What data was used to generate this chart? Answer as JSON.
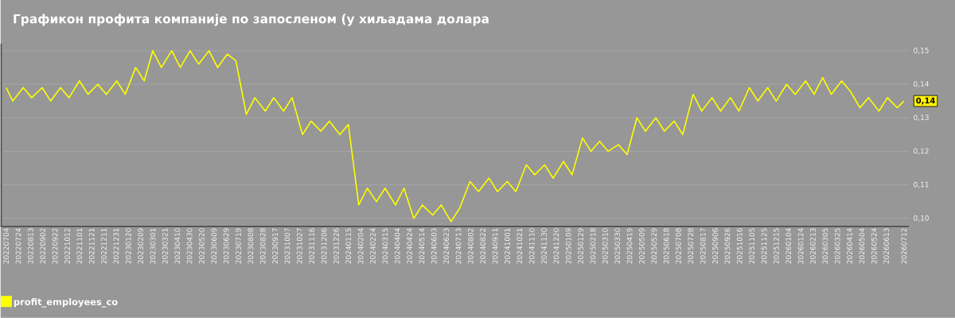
{
  "chart_data": {
    "type": "line",
    "title": "Графикон профита компаније по запосленом (у хиљадама долара",
    "x": [
      "2022-07-04",
      "2022-07-15",
      "2022-08-01",
      "2022-08-15",
      "2022-09-01",
      "2022-09-15",
      "2022-10-01",
      "2022-10-15",
      "2022-11-01",
      "2022-11-15",
      "2022-12-01",
      "2022-12-15",
      "2023-01-01",
      "2023-01-15",
      "2023-02-01",
      "2023-02-15",
      "2023-03-01",
      "2023-03-15",
      "2023-04-01",
      "2023-04-15",
      "2023-05-01",
      "2023-05-15",
      "2023-06-01",
      "2023-06-15",
      "2023-07-01",
      "2023-07-15",
      "2023-08-01",
      "2023-08-15",
      "2023-09-01",
      "2023-09-15",
      "2023-10-01",
      "2023-10-15",
      "2023-11-01",
      "2023-11-15",
      "2023-12-01",
      "2023-12-15",
      "2024-01-01",
      "2024-01-15",
      "2024-02-01",
      "2024-02-15",
      "2024-03-01",
      "2024-03-15",
      "2024-04-01",
      "2024-04-15",
      "2024-05-01",
      "2024-05-15",
      "2024-06-01",
      "2024-06-15",
      "2024-07-01",
      "2024-07-15",
      "2024-08-01",
      "2024-08-15",
      "2024-09-01",
      "2024-09-15",
      "2024-10-01",
      "2024-10-15",
      "2024-11-01",
      "2024-11-15",
      "2024-12-01",
      "2024-12-15",
      "2025-01-01",
      "2025-01-15",
      "2025-02-01",
      "2025-02-15",
      "2025-03-01",
      "2025-03-15",
      "2025-04-01",
      "2025-04-15",
      "2025-05-01",
      "2025-05-15",
      "2025-06-01",
      "2025-06-15",
      "2025-07-01",
      "2025-07-15",
      "2025-08-01",
      "2025-08-15",
      "2025-09-01",
      "2025-09-15",
      "2025-10-01",
      "2025-10-15",
      "2025-11-01",
      "2025-11-15",
      "2025-12-01",
      "2025-12-15",
      "2026-01-01",
      "2026-01-15",
      "2026-02-01",
      "2026-02-15",
      "2026-03-01",
      "2026-03-15",
      "2026-04-01",
      "2026-04-15",
      "2026-05-01",
      "2026-05-15",
      "2026-06-01",
      "2026-06-15",
      "2026-07-01",
      "2026-07-12"
    ],
    "series": [
      {
        "name": "profit_employees_co",
        "color": "#ffff00",
        "values": [
          0.139,
          0.135,
          0.139,
          0.136,
          0.139,
          0.135,
          0.139,
          0.136,
          0.141,
          0.137,
          0.14,
          0.137,
          0.141,
          0.137,
          0.145,
          0.141,
          0.15,
          0.145,
          0.15,
          0.145,
          0.15,
          0.146,
          0.15,
          0.145,
          0.149,
          0.147,
          0.131,
          0.136,
          0.132,
          0.136,
          0.132,
          0.136,
          0.125,
          0.129,
          0.126,
          0.129,
          0.125,
          0.128,
          0.104,
          0.109,
          0.105,
          0.109,
          0.104,
          0.109,
          0.1,
          0.104,
          0.101,
          0.104,
          0.099,
          0.103,
          0.111,
          0.108,
          0.112,
          0.108,
          0.111,
          0.108,
          0.116,
          0.113,
          0.116,
          0.112,
          0.117,
          0.113,
          0.124,
          0.12,
          0.123,
          0.12,
          0.122,
          0.119,
          0.13,
          0.126,
          0.13,
          0.126,
          0.129,
          0.125,
          0.137,
          0.132,
          0.136,
          0.132,
          0.136,
          0.132,
          0.139,
          0.135,
          0.139,
          0.135,
          0.14,
          0.137,
          0.141,
          0.137,
          0.142,
          0.137,
          0.141,
          0.138,
          0.133,
          0.136,
          0.132,
          0.136,
          0.133,
          0.135
        ]
      }
    ],
    "xlim": [
      "2022-06-25",
      "2026-07-20"
    ],
    "xticks": [
      {
        "value": "2022-07-04",
        "label": "20220704"
      },
      {
        "value": "2022-07-24",
        "label": "20220724"
      },
      {
        "value": "2022-08-13",
        "label": "20220813"
      },
      {
        "value": "2022-09-02",
        "label": "20220902"
      },
      {
        "value": "2022-09-22",
        "label": "20220922"
      },
      {
        "value": "2022-10-12",
        "label": "20221012"
      },
      {
        "value": "2022-11-01",
        "label": "20221101"
      },
      {
        "value": "2022-11-21",
        "label": "20221121"
      },
      {
        "value": "2022-12-11",
        "label": "20221211"
      },
      {
        "value": "2022-12-31",
        "label": "20221231"
      },
      {
        "value": "2023-01-20",
        "label": "20230120"
      },
      {
        "value": "2023-02-09",
        "label": "20230209"
      },
      {
        "value": "2023-03-01",
        "label": "20230301"
      },
      {
        "value": "2023-03-21",
        "label": "20230321"
      },
      {
        "value": "2023-04-10",
        "label": "20230410"
      },
      {
        "value": "2023-04-30",
        "label": "20230430"
      },
      {
        "value": "2023-05-20",
        "label": "20230520"
      },
      {
        "value": "2023-06-09",
        "label": "20230609"
      },
      {
        "value": "2023-06-29",
        "label": "20230629"
      },
      {
        "value": "2023-07-19",
        "label": "20230719"
      },
      {
        "value": "2023-08-08",
        "label": "20230808"
      },
      {
        "value": "2023-08-28",
        "label": "20230828"
      },
      {
        "value": "2023-09-17",
        "label": "20230917"
      },
      {
        "value": "2023-10-07",
        "label": "20231007"
      },
      {
        "value": "2023-10-27",
        "label": "20231027"
      },
      {
        "value": "2023-11-16",
        "label": "20231116"
      },
      {
        "value": "2023-12-06",
        "label": "20231206"
      },
      {
        "value": "2023-12-26",
        "label": "20231226"
      },
      {
        "value": "2024-01-15",
        "label": "20240115"
      },
      {
        "value": "2024-02-04",
        "label": "20240204"
      },
      {
        "value": "2024-02-24",
        "label": "20240224"
      },
      {
        "value": "2024-03-15",
        "label": "20240315"
      },
      {
        "value": "2024-04-04",
        "label": "20240404"
      },
      {
        "value": "2024-04-24",
        "label": "20240424"
      },
      {
        "value": "2024-05-14",
        "label": "20240514"
      },
      {
        "value": "2024-06-03",
        "label": "20240603"
      },
      {
        "value": "2024-06-23",
        "label": "20240623"
      },
      {
        "value": "2024-07-13",
        "label": "20240713"
      },
      {
        "value": "2024-08-02",
        "label": "20240802"
      },
      {
        "value": "2024-08-22",
        "label": "20240822"
      },
      {
        "value": "2024-09-11",
        "label": "20240911"
      },
      {
        "value": "2024-10-01",
        "label": "20241001"
      },
      {
        "value": "2024-10-21",
        "label": "20241021"
      },
      {
        "value": "2024-11-10",
        "label": "20241110"
      },
      {
        "value": "2024-11-30",
        "label": "20241130"
      },
      {
        "value": "2024-12-20",
        "label": "20241220"
      },
      {
        "value": "2025-01-09",
        "label": "20250109"
      },
      {
        "value": "2025-01-29",
        "label": "20250129"
      },
      {
        "value": "2025-02-18",
        "label": "20250218"
      },
      {
        "value": "2025-03-10",
        "label": "20250310"
      },
      {
        "value": "2025-03-30",
        "label": "20250330"
      },
      {
        "value": "2025-04-19",
        "label": "20250419"
      },
      {
        "value": "2025-05-09",
        "label": "20250509"
      },
      {
        "value": "2025-05-29",
        "label": "20250529"
      },
      {
        "value": "2025-06-18",
        "label": "20250618"
      },
      {
        "value": "2025-07-08",
        "label": "20250708"
      },
      {
        "value": "2025-07-28",
        "label": "20250728"
      },
      {
        "value": "2025-08-17",
        "label": "20250817"
      },
      {
        "value": "2025-09-06",
        "label": "20250906"
      },
      {
        "value": "2025-09-26",
        "label": "20250926"
      },
      {
        "value": "2025-10-16",
        "label": "20251016"
      },
      {
        "value": "2025-11-05",
        "label": "20251105"
      },
      {
        "value": "2025-11-25",
        "label": "20251125"
      },
      {
        "value": "2025-12-15",
        "label": "20251215"
      },
      {
        "value": "2026-01-04",
        "label": "20260104"
      },
      {
        "value": "2026-01-24",
        "label": "20260124"
      },
      {
        "value": "2026-02-13",
        "label": "20260213"
      },
      {
        "value": "2026-03-05",
        "label": "20260305"
      },
      {
        "value": "2026-03-25",
        "label": "20260325"
      },
      {
        "value": "2026-04-14",
        "label": "20260414"
      },
      {
        "value": "2026-05-04",
        "label": "20260504"
      },
      {
        "value": "2026-05-24",
        "label": "20260524"
      },
      {
        "value": "2026-06-13",
        "label": "20260613"
      },
      {
        "value": "2026-07-12",
        "label": "20260712"
      }
    ],
    "ylim": [
      0.0976,
      0.1521
    ],
    "yticks": [
      {
        "value": 0.1,
        "label": "0,10"
      },
      {
        "value": 0.11,
        "label": "0,11"
      },
      {
        "value": 0.12,
        "label": "0,12"
      },
      {
        "value": 0.13,
        "label": "0,13"
      },
      {
        "value": 0.14,
        "label": "0,14"
      },
      {
        "value": 0.15,
        "label": "0,15"
      }
    ],
    "annotations": [
      {
        "text": "0,14",
        "x": "2026-07-12",
        "y": 0.135
      }
    ],
    "grid": "y",
    "legend": "bottom left",
    "marker": "none",
    "line_style": "solid"
  }
}
